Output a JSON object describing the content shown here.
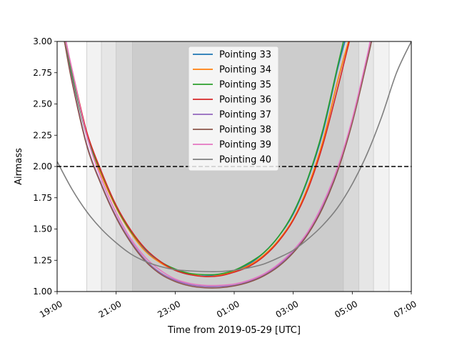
{
  "chart_data": {
    "type": "line",
    "title": "",
    "xlabel": "Time from 2019-05-29 [UTC]",
    "ylabel": "Airmass",
    "x_unit": "hours_since_2019-05-29_00:00_UTC",
    "xlim": [
      19,
      31
    ],
    "ylim": [
      1.0,
      3.0
    ],
    "x_ticks": [
      {
        "value": 19,
        "label": "19:00"
      },
      {
        "value": 21,
        "label": "21:00"
      },
      {
        "value": 23,
        "label": "23:00"
      },
      {
        "value": 25,
        "label": "01:00"
      },
      {
        "value": 27,
        "label": "03:00"
      },
      {
        "value": 29,
        "label": "05:00"
      },
      {
        "value": 31,
        "label": "07:00"
      }
    ],
    "y_ticks": [
      {
        "value": 1.0,
        "label": "1.00"
      },
      {
        "value": 1.25,
        "label": "1.25"
      },
      {
        "value": 1.5,
        "label": "1.50"
      },
      {
        "value": 1.75,
        "label": "1.75"
      },
      {
        "value": 2.0,
        "label": "2.00"
      },
      {
        "value": 2.25,
        "label": "2.25"
      },
      {
        "value": 2.5,
        "label": "2.50"
      },
      {
        "value": 2.75,
        "label": "2.75"
      },
      {
        "value": 3.0,
        "label": "3.00"
      }
    ],
    "reference_line": {
      "y": 2.0,
      "style": "dashed",
      "color": "#000000"
    },
    "twilight_bands": [
      {
        "start": 20.0,
        "end": 30.25,
        "color": "#f2f2f2"
      },
      {
        "start": 20.5,
        "end": 29.72,
        "color": "#e6e6e6"
      },
      {
        "start": 21.0,
        "end": 29.22,
        "color": "#d9d9d9"
      },
      {
        "start": 21.55,
        "end": 28.7,
        "color": "#cccccc"
      }
    ],
    "legend_position": "top-center",
    "series": [
      {
        "name": "Pointing 33",
        "color": "#1f77b4",
        "points": [
          [
            19.25,
            3.0
          ],
          [
            19.5,
            2.74
          ],
          [
            20.0,
            2.25
          ],
          [
            20.5,
            1.95
          ],
          [
            21.0,
            1.68
          ],
          [
            21.5,
            1.48
          ],
          [
            22.0,
            1.33
          ],
          [
            22.5,
            1.23
          ],
          [
            23.0,
            1.17
          ],
          [
            23.5,
            1.135
          ],
          [
            24.0,
            1.125
          ],
          [
            24.5,
            1.135
          ],
          [
            25.0,
            1.165
          ],
          [
            25.5,
            1.22
          ],
          [
            26.0,
            1.31
          ],
          [
            26.5,
            1.44
          ],
          [
            27.0,
            1.62
          ],
          [
            27.5,
            1.9
          ],
          [
            28.0,
            2.27
          ],
          [
            28.5,
            2.78
          ],
          [
            28.75,
            3.0
          ]
        ]
      },
      {
        "name": "Pointing 34",
        "color": "#ff7f0e",
        "points": [
          [
            19.25,
            3.0
          ],
          [
            19.5,
            2.74
          ],
          [
            20.0,
            2.25
          ],
          [
            20.5,
            1.93
          ],
          [
            21.0,
            1.67
          ],
          [
            21.5,
            1.47
          ],
          [
            22.0,
            1.32
          ],
          [
            22.5,
            1.23
          ],
          [
            23.0,
            1.17
          ],
          [
            23.5,
            1.14
          ],
          [
            24.0,
            1.12
          ],
          [
            24.5,
            1.13
          ],
          [
            25.0,
            1.16
          ],
          [
            25.5,
            1.21
          ],
          [
            26.0,
            1.29
          ],
          [
            26.5,
            1.41
          ],
          [
            27.0,
            1.58
          ],
          [
            27.5,
            1.84
          ],
          [
            28.0,
            2.2
          ],
          [
            28.5,
            2.68
          ],
          [
            28.87,
            3.0
          ]
        ]
      },
      {
        "name": "Pointing 35",
        "color": "#2ca02c",
        "points": [
          [
            19.25,
            3.0
          ],
          [
            19.5,
            2.74
          ],
          [
            20.0,
            2.25
          ],
          [
            20.5,
            1.95
          ],
          [
            21.0,
            1.68
          ],
          [
            21.5,
            1.48
          ],
          [
            22.0,
            1.34
          ],
          [
            22.5,
            1.24
          ],
          [
            23.0,
            1.18
          ],
          [
            23.5,
            1.145
          ],
          [
            24.0,
            1.135
          ],
          [
            24.5,
            1.14
          ],
          [
            25.0,
            1.17
          ],
          [
            25.5,
            1.23
          ],
          [
            26.0,
            1.31
          ],
          [
            26.5,
            1.44
          ],
          [
            27.0,
            1.63
          ],
          [
            27.5,
            1.91
          ],
          [
            28.0,
            2.29
          ],
          [
            28.5,
            2.8
          ],
          [
            28.7,
            3.0
          ]
        ]
      },
      {
        "name": "Pointing 36",
        "color": "#d62728",
        "points": [
          [
            19.3,
            3.0
          ],
          [
            19.5,
            2.78
          ],
          [
            20.0,
            2.28
          ],
          [
            20.5,
            1.96
          ],
          [
            21.0,
            1.69
          ],
          [
            21.5,
            1.49
          ],
          [
            22.0,
            1.34
          ],
          [
            22.5,
            1.24
          ],
          [
            23.0,
            1.17
          ],
          [
            23.5,
            1.135
          ],
          [
            24.0,
            1.12
          ],
          [
            24.5,
            1.125
          ],
          [
            25.0,
            1.155
          ],
          [
            25.5,
            1.2
          ],
          [
            26.0,
            1.28
          ],
          [
            26.5,
            1.4
          ],
          [
            27.0,
            1.57
          ],
          [
            27.5,
            1.82
          ],
          [
            28.0,
            2.17
          ],
          [
            28.5,
            2.62
          ],
          [
            28.9,
            3.0
          ]
        ]
      },
      {
        "name": "Pointing 37",
        "color": "#9467bd",
        "points": [
          [
            19.25,
            3.0
          ],
          [
            19.5,
            2.7
          ],
          [
            20.0,
            2.18
          ],
          [
            20.5,
            1.86
          ],
          [
            21.0,
            1.6
          ],
          [
            21.5,
            1.4
          ],
          [
            22.0,
            1.25
          ],
          [
            22.5,
            1.15
          ],
          [
            23.0,
            1.09
          ],
          [
            23.5,
            1.055
          ],
          [
            24.0,
            1.04
          ],
          [
            24.5,
            1.04
          ],
          [
            25.0,
            1.05
          ],
          [
            25.5,
            1.08
          ],
          [
            26.0,
            1.13
          ],
          [
            26.5,
            1.21
          ],
          [
            27.0,
            1.32
          ],
          [
            27.5,
            1.47
          ],
          [
            28.0,
            1.68
          ],
          [
            28.5,
            1.97
          ],
          [
            29.0,
            2.36
          ],
          [
            29.5,
            2.85
          ],
          [
            29.65,
            3.0
          ]
        ]
      },
      {
        "name": "Pointing 38",
        "color": "#8c564b",
        "points": [
          [
            19.25,
            3.0
          ],
          [
            19.5,
            2.68
          ],
          [
            20.0,
            2.17
          ],
          [
            20.5,
            1.85
          ],
          [
            21.0,
            1.59
          ],
          [
            21.5,
            1.39
          ],
          [
            22.0,
            1.24
          ],
          [
            22.5,
            1.14
          ],
          [
            23.0,
            1.08
          ],
          [
            23.5,
            1.045
          ],
          [
            24.0,
            1.03
          ],
          [
            24.5,
            1.03
          ],
          [
            25.0,
            1.045
          ],
          [
            25.5,
            1.075
          ],
          [
            26.0,
            1.125
          ],
          [
            26.5,
            1.2
          ],
          [
            27.0,
            1.31
          ],
          [
            27.5,
            1.46
          ],
          [
            28.0,
            1.67
          ],
          [
            28.5,
            1.96
          ],
          [
            29.0,
            2.35
          ],
          [
            29.5,
            2.84
          ],
          [
            29.65,
            3.0
          ]
        ]
      },
      {
        "name": "Pointing 39",
        "color": "#e377c2",
        "points": [
          [
            19.3,
            3.0
          ],
          [
            19.5,
            2.78
          ],
          [
            20.0,
            2.25
          ],
          [
            20.5,
            1.9
          ],
          [
            21.0,
            1.63
          ],
          [
            21.5,
            1.42
          ],
          [
            22.0,
            1.27
          ],
          [
            22.5,
            1.17
          ],
          [
            23.0,
            1.1
          ],
          [
            23.5,
            1.065
          ],
          [
            24.0,
            1.05
          ],
          [
            24.5,
            1.05
          ],
          [
            25.0,
            1.06
          ],
          [
            25.5,
            1.09
          ],
          [
            26.0,
            1.14
          ],
          [
            26.5,
            1.22
          ],
          [
            27.0,
            1.33
          ],
          [
            27.5,
            1.48
          ],
          [
            28.0,
            1.7
          ],
          [
            28.5,
            1.99
          ],
          [
            29.0,
            2.38
          ],
          [
            29.5,
            2.88
          ],
          [
            29.6,
            3.0
          ]
        ]
      },
      {
        "name": "Pointing 40",
        "color": "#7f7f7f",
        "points": [
          [
            19.0,
            2.04
          ],
          [
            19.5,
            1.82
          ],
          [
            20.0,
            1.64
          ],
          [
            20.5,
            1.5
          ],
          [
            21.0,
            1.39
          ],
          [
            21.5,
            1.3
          ],
          [
            22.0,
            1.24
          ],
          [
            22.5,
            1.2
          ],
          [
            23.0,
            1.175
          ],
          [
            23.5,
            1.165
          ],
          [
            24.0,
            1.16
          ],
          [
            24.5,
            1.16
          ],
          [
            25.0,
            1.17
          ],
          [
            25.5,
            1.19
          ],
          [
            26.0,
            1.22
          ],
          [
            26.5,
            1.27
          ],
          [
            27.0,
            1.33
          ],
          [
            27.5,
            1.42
          ],
          [
            28.0,
            1.53
          ],
          [
            28.5,
            1.67
          ],
          [
            29.0,
            1.86
          ],
          [
            29.5,
            2.1
          ],
          [
            30.0,
            2.4
          ],
          [
            30.5,
            2.75
          ],
          [
            31.0,
            3.0
          ]
        ]
      }
    ]
  }
}
